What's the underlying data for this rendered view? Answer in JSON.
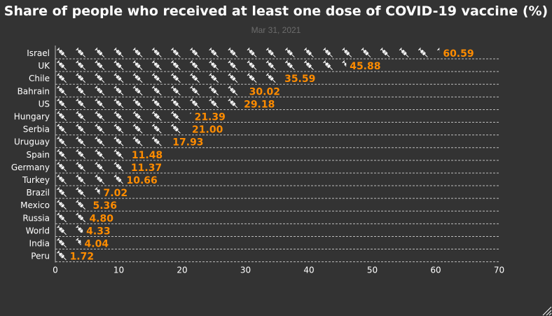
{
  "chart_data": {
    "type": "bar",
    "orientation": "horizontal",
    "title": "Share of people who received at least one dose of COVID-19 vaccine (%)",
    "subtitle": "Mar 31, 2021",
    "categories": [
      "Israel",
      "UK",
      "Chile",
      "Bahrain",
      "US",
      "Hungary",
      "Serbia",
      "Uruguay",
      "Spain",
      "Germany",
      "Turkey",
      "Brazil",
      "Mexico",
      "Russia",
      "World",
      "India",
      "Peru"
    ],
    "values": [
      60.59,
      45.88,
      35.59,
      30.02,
      29.18,
      21.39,
      21.0,
      17.93,
      11.48,
      11.37,
      10.66,
      7.02,
      5.36,
      4.8,
      4.33,
      4.04,
      1.72
    ],
    "value_labels": [
      "60.59",
      "45.88",
      "35.59",
      "30.02",
      "29.18",
      "21.39",
      "21.00",
      "17.93",
      "11.48",
      "11.37",
      "10.66",
      "7.02",
      "5.36",
      "4.80",
      "4.33",
      "4.04",
      "1.72"
    ],
    "xlim": [
      0,
      70
    ],
    "xticks": [
      "0",
      "10",
      "20",
      "30",
      "40",
      "50",
      "60",
      "70"
    ],
    "mark_symbol": "syringe-icon",
    "grid": true,
    "colors": {
      "background": "#333333",
      "title": "#ffffff",
      "subtitle": "#6c6c6c",
      "label": "#ffffff",
      "value": "#ff8c00",
      "symbol": "#ffffff",
      "grid": "#bbbbbb"
    }
  }
}
